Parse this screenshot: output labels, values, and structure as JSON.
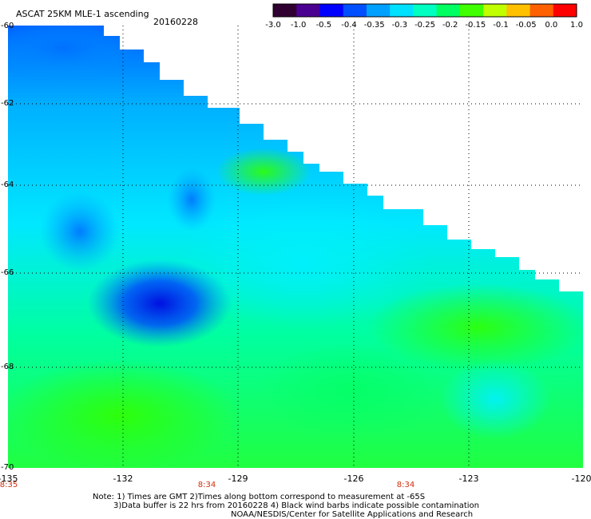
{
  "header": {
    "title": "ASCAT 25KM MLE-1 ascending",
    "date": "20160228"
  },
  "colorbar": {
    "labels": [
      "-3.0",
      "-1.0",
      "-0.5",
      "-0.4",
      "-0.35",
      "-0.3",
      "-0.25",
      "-0.2",
      "-0.15",
      "-0.1",
      "-0.05",
      "0.0",
      "1.0"
    ],
    "colors": [
      "#300030",
      "#4a0090",
      "#0000ff",
      "#0050ff",
      "#00a0ff",
      "#00e0ff",
      "#00ffc0",
      "#00ff60",
      "#40ff00",
      "#c0ff00",
      "#ffc000",
      "#ff6000",
      "#ff0000"
    ]
  },
  "axes": {
    "x_ticks": [
      "-135",
      "-132",
      "-129",
      "-126",
      "-123",
      "-120"
    ],
    "y_ticks": [
      "-60",
      "-62",
      "-64",
      "-66",
      "-68",
      "-70"
    ]
  },
  "times": {
    "left": "8:35",
    "middle": "8:34",
    "right": "8:34"
  },
  "notes": {
    "line1": "Note: 1) Times are GMT 2)Times along bottom correspond to measurement at -65S",
    "line2": "3)Data buffer is 22 hrs from 20160228 4) Black wind barbs indicate possible contamination",
    "line3": "NOAA/NESDIS/Center for Satellite Applications and Research"
  }
}
